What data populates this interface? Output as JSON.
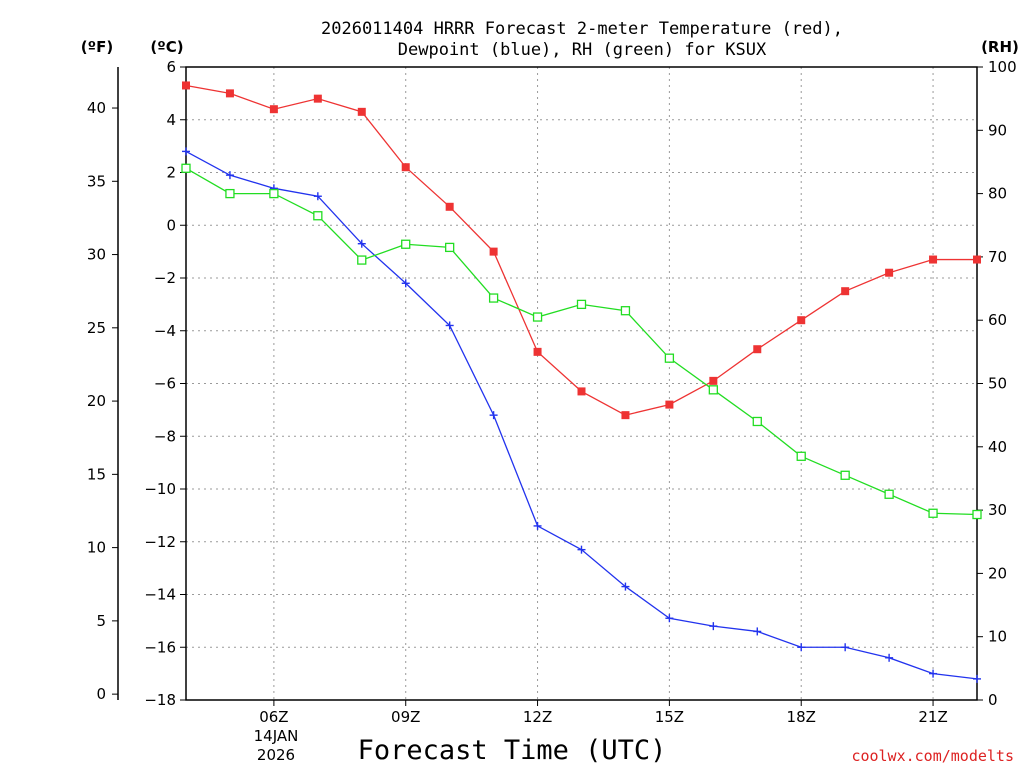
{
  "chart_data": {
    "type": "line",
    "title_lines": [
      "2026011404 HRRR Forecast 2-meter Temperature (red),",
      "Dewpoint (blue), RH (green) for KSUX"
    ],
    "xlabel": "Forecast Time (UTC)",
    "left_axis_units": [
      "(ºF)",
      "(ºC)"
    ],
    "right_axis_units": "(RH)",
    "celsius_ticks": [
      6,
      4,
      2,
      0,
      -2,
      -4,
      -6,
      -8,
      -10,
      -12,
      -14,
      -16,
      -18
    ],
    "celsius_tick_labels": [
      "6",
      "4",
      "2",
      "0",
      "−2",
      "−4",
      "−6",
      "−8",
      "−10",
      "−12",
      "−14",
      "−16",
      "−18"
    ],
    "fahrenheit_ticks": [
      40,
      35,
      30,
      25,
      20,
      15,
      10,
      5,
      0
    ],
    "fahrenheit_tick_labels": [
      "40",
      "35",
      "30",
      "25",
      "20",
      "15",
      "10",
      "5",
      "0"
    ],
    "rh_ticks": [
      100,
      90,
      80,
      70,
      60,
      50,
      40,
      30,
      20,
      10,
      0
    ],
    "rh_tick_labels": [
      "100",
      "90",
      "80",
      "70",
      "60",
      "50",
      "40",
      "30",
      "20",
      "10",
      "0"
    ],
    "x_ticks": [
      6,
      9,
      12,
      15,
      18,
      21
    ],
    "x_tick_labels": [
      "06Z",
      "09Z",
      "12Z",
      "15Z",
      "18Z",
      "21Z"
    ],
    "x_date_label": [
      "14JAN",
      "2026"
    ],
    "x_range": [
      4,
      22
    ],
    "y_celsius_range": [
      -18,
      6
    ],
    "y_rh_range": [
      0,
      100
    ],
    "series": [
      {
        "name": "2-meter Temperature",
        "color": "#ee3333",
        "marker": "filled-square",
        "axis": "celsius",
        "x": [
          4,
          5,
          6,
          7,
          8,
          9,
          10,
          11,
          12,
          13,
          14,
          15,
          16,
          17,
          18,
          19,
          20,
          21,
          22
        ],
        "values": [
          5.3,
          5.0,
          4.4,
          4.8,
          4.3,
          2.2,
          0.7,
          -1.0,
          -4.8,
          -6.3,
          -7.2,
          -6.8,
          -5.9,
          -4.7,
          -3.6,
          -2.5,
          -1.8,
          -1.3,
          -1.3
        ]
      },
      {
        "name": "Dewpoint",
        "color": "#2233ee",
        "marker": "plus",
        "axis": "celsius",
        "x": [
          4,
          5,
          6,
          7,
          8,
          9,
          10,
          11,
          12,
          13,
          14,
          15,
          16,
          17,
          18,
          19,
          20,
          21,
          22
        ],
        "values": [
          2.8,
          1.9,
          1.4,
          1.1,
          -0.7,
          -2.2,
          -3.8,
          -7.2,
          -11.4,
          -12.3,
          -13.7,
          -14.9,
          -15.2,
          -15.4,
          -16.0,
          -16.0,
          -16.4,
          -17.0,
          -17.2
        ]
      },
      {
        "name": "RH",
        "color": "#22dd22",
        "marker": "open-square",
        "axis": "rh",
        "x": [
          4,
          5,
          6,
          7,
          8,
          9,
          10,
          11,
          12,
          13,
          14,
          15,
          16,
          17,
          18,
          19,
          20,
          21,
          22
        ],
        "values": [
          84,
          80,
          80,
          76.5,
          69.5,
          72,
          71.5,
          63.5,
          60.5,
          62.5,
          61.5,
          54,
          49,
          44,
          38.5,
          35.5,
          32.5,
          29.5,
          29.3
        ]
      }
    ]
  },
  "footer": {
    "credit": "coolwx.com/modelts"
  }
}
